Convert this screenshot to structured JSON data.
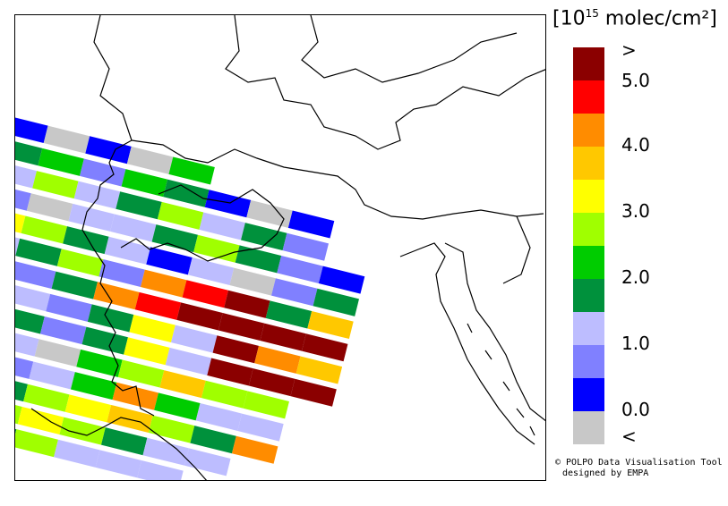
{
  "legend": {
    "unit_prefix": "[10",
    "unit_exp": "15",
    "unit_suffix": " molec/cm²]",
    "colors": [
      "#8b0000",
      "#ff0000",
      "#ff8c00",
      "#ffc800",
      "#ffff00",
      "#a0ff00",
      "#00cc00",
      "#00913c",
      "#bdbdff",
      "#8080ff",
      "#0000ff",
      "#c8c8c8"
    ],
    "ticks": [
      ">",
      "5.0",
      "4.0",
      "3.0",
      "2.0",
      "1.0",
      "0.0",
      "<"
    ]
  },
  "credit": {
    "line1": "© POLPO Data Visualisation Tool",
    "line2": "designed by EMPA"
  }
}
